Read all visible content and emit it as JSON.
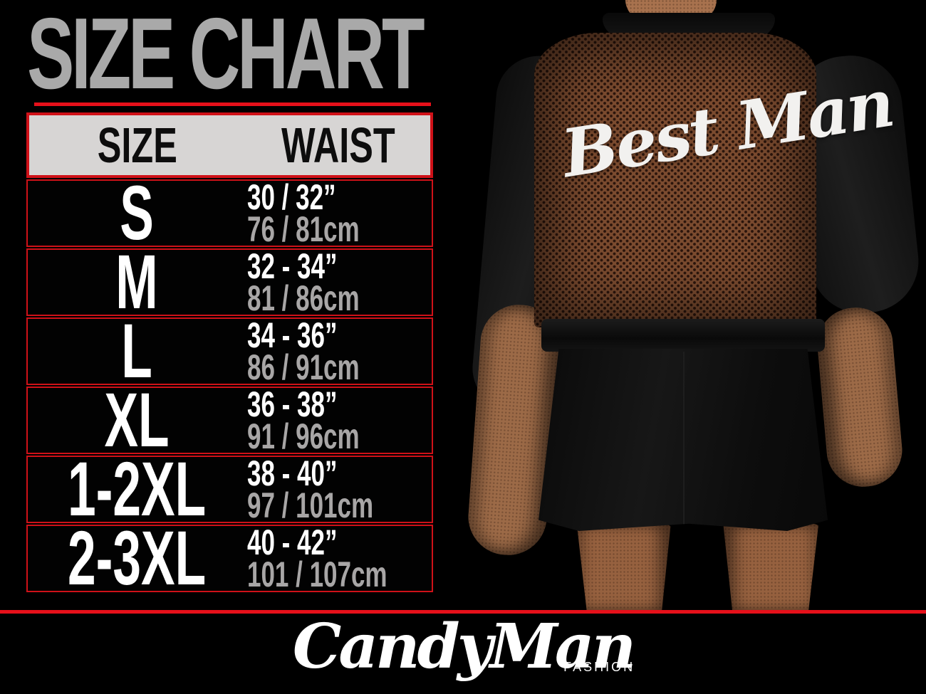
{
  "title": "SIZE CHART",
  "chart_data": {
    "type": "table",
    "title": "SIZE CHART",
    "columns": [
      "SIZE",
      "WAIST"
    ],
    "rows": [
      {
        "size": "S",
        "waist_in": "30 / 32”",
        "waist_cm": "76 / 81cm"
      },
      {
        "size": "M",
        "waist_in": "32 - 34”",
        "waist_cm": "81 / 86cm"
      },
      {
        "size": "L",
        "waist_in": "34 - 36”",
        "waist_cm": "86 / 91cm"
      },
      {
        "size": "XL",
        "waist_in": "36 - 38”",
        "waist_cm": "91 / 96cm"
      },
      {
        "size": "1-2XL",
        "waist_in": "38 - 40”",
        "waist_cm": "97 / 101cm"
      },
      {
        "size": "2-3XL",
        "waist_in": "40 - 42”",
        "waist_cm": "101 / 107cm"
      }
    ]
  },
  "photo": {
    "garment_text": "Best Man"
  },
  "logo": {
    "brand": "CandyMan",
    "sub": "FASHION"
  },
  "colors": {
    "accent_red": "#cf1118",
    "line_red": "#e6101a",
    "header_bg": "#d7d5d4",
    "title_gray": "#a9a9a9",
    "cm_gray": "#a8a6a6",
    "mesh_brown": "#7b4b2f"
  }
}
